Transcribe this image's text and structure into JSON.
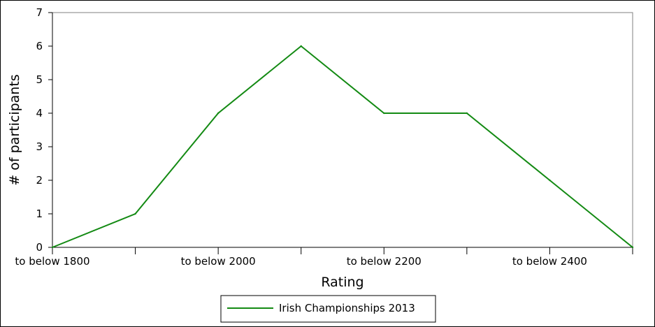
{
  "chart_data": {
    "type": "line",
    "title": "",
    "xlabel": "Rating",
    "ylabel": "# of participants",
    "x_tick_labels": [
      "to below 1800",
      "to below 2000",
      "to below 2200",
      "to below 2400"
    ],
    "x_label_positions": [
      0,
      2,
      4,
      6
    ],
    "x_ticks": [
      0,
      1,
      2,
      3,
      4,
      5,
      6,
      7
    ],
    "x_range": [
      0,
      7
    ],
    "ylim": [
      0,
      7
    ],
    "y_ticks": [
      0,
      1,
      2,
      3,
      4,
      5,
      6,
      7
    ],
    "grid": false,
    "legend_position": "bottom-center",
    "series": [
      {
        "name": "Irish Championships 2013",
        "color": "#138a13",
        "x": [
          0,
          1,
          2,
          3,
          4,
          5,
          6,
          7
        ],
        "values": [
          0,
          1,
          4,
          6,
          4,
          4,
          2,
          0
        ]
      }
    ]
  }
}
